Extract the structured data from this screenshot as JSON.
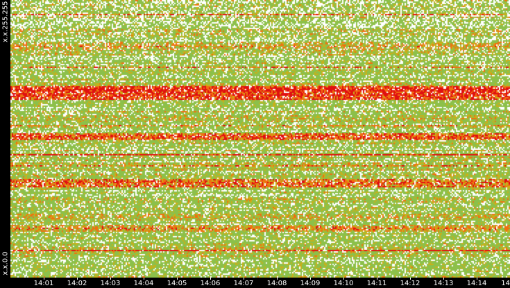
{
  "chart_data": {
    "type": "heatmap",
    "title": "",
    "xlabel": "",
    "ylabel": "",
    "y_labels": {
      "top": "x.x.255.255",
      "bottom": "x.x.0.0"
    },
    "x_tick_labels": [
      "14:01",
      "14:02",
      "14:03",
      "14:04",
      "14:05",
      "14:06",
      "14:07",
      "14:08",
      "14:09",
      "14:10",
      "14:11",
      "14:12",
      "14:13",
      "14:14",
      "14"
    ],
    "x_range": [
      "14:00:30",
      "14:15"
    ],
    "grid": false,
    "legend": "none",
    "colors": {
      "background": "#000000",
      "empty": "#ffffff",
      "low": "#8cc04a",
      "mid": "#c8b01a",
      "high": "#f07010",
      "max": "#e01010",
      "text": "#ffffff"
    },
    "band_rows": 200,
    "time_columns": 360,
    "hot_bands": [
      {
        "y_from_top": 0.32,
        "intensity": 0.9
      },
      {
        "y_from_top": 0.34,
        "intensity": 0.85
      },
      {
        "y_from_top": 0.165,
        "intensity": 0.6
      },
      {
        "y_from_top": 0.49,
        "intensity": 0.8
      },
      {
        "y_from_top": 0.655,
        "intensity": 0.75
      },
      {
        "y_from_top": 0.78,
        "intensity": 0.55
      },
      {
        "y_from_top": 0.82,
        "intensity": 0.65
      },
      {
        "y_from_top": 0.9,
        "intensity": 0.5
      }
    ]
  }
}
